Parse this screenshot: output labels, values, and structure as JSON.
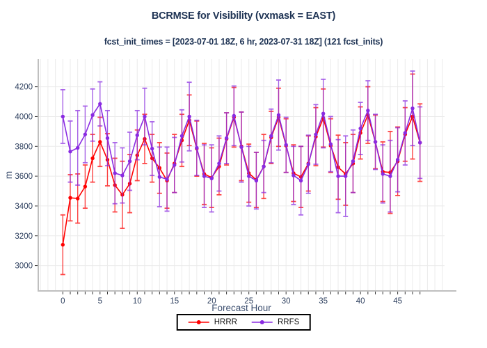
{
  "header": {
    "title": "BCRMSE for Visibility (vxmask = EAST)",
    "subtitle": "fcst_init_times = [2023-07-01 18Z, 6 hr, 2023-07-31 18Z] (121 fcst_inits)"
  },
  "chart_data": {
    "type": "line",
    "title": "BCRMSE for Visibility (vxmask = EAST)",
    "subtitle": "fcst_init_times = [2023-07-01 18Z, 6 hr, 2023-07-31 18Z] (121 fcst_inits)",
    "xlabel": "Forecast Hour",
    "ylabel": "m",
    "x": [
      0,
      1,
      2,
      3,
      4,
      5,
      6,
      7,
      8,
      9,
      10,
      11,
      12,
      13,
      14,
      15,
      16,
      17,
      18,
      19,
      20,
      21,
      22,
      23,
      24,
      25,
      26,
      27,
      28,
      29,
      30,
      31,
      32,
      33,
      34,
      35,
      36,
      37,
      38,
      39,
      40,
      41,
      42,
      43,
      44,
      45,
      46,
      47,
      48
    ],
    "series": [
      {
        "name": "HRRR",
        "color": "#ff0000",
        "marker": "circle",
        "values": [
          3140,
          3455,
          3450,
          3530,
          3720,
          3830,
          3710,
          3540,
          3475,
          3550,
          3740,
          3850,
          3720,
          3655,
          3570,
          3685,
          3840,
          3975,
          3785,
          3615,
          3590,
          3665,
          3850,
          3995,
          3800,
          3620,
          3575,
          3665,
          3860,
          3995,
          3805,
          3620,
          3595,
          3685,
          3865,
          3990,
          3805,
          3660,
          3615,
          3685,
          3890,
          4010,
          3830,
          3630,
          3625,
          3700,
          3880,
          4000,
          3825
        ],
        "err": [
          200,
          155,
          165,
          145,
          160,
          165,
          175,
          180,
          225,
          195,
          170,
          165,
          160,
          170,
          185,
          195,
          175,
          170,
          185,
          205,
          200,
          190,
          175,
          200,
          230,
          195,
          185,
          215,
          175,
          195,
          180,
          190,
          205,
          185,
          195,
          195,
          180,
          215,
          210,
          195,
          175,
          190,
          180,
          200,
          275,
          230,
          180,
          285,
          260
        ]
      },
      {
        "name": "RRFS",
        "color": "#8a2be2",
        "marker": "circle",
        "values": [
          4000,
          3765,
          3790,
          3880,
          4010,
          4085,
          3855,
          3620,
          3605,
          3700,
          3875,
          4000,
          3785,
          3595,
          3580,
          3675,
          3870,
          4000,
          3790,
          3600,
          3585,
          3685,
          3855,
          4005,
          3795,
          3600,
          3570,
          3665,
          3870,
          4010,
          3810,
          3605,
          3570,
          3680,
          3880,
          4020,
          3815,
          3600,
          3600,
          3700,
          3920,
          4040,
          3830,
          3615,
          3600,
          3710,
          3890,
          4055,
          3825
        ],
        "err": [
          180,
          205,
          250,
          190,
          175,
          148,
          185,
          205,
          185,
          195,
          165,
          190,
          180,
          200,
          215,
          185,
          175,
          230,
          185,
          210,
          225,
          185,
          170,
          200,
          235,
          200,
          190,
          175,
          180,
          235,
          185,
          195,
          230,
          195,
          200,
          230,
          185,
          245,
          270,
          210,
          175,
          200,
          185,
          195,
          240,
          215,
          215,
          250,
          240
        ]
      }
    ],
    "xlim": [
      -3.3,
      51.3
    ],
    "ylim": [
      2830,
      4385
    ],
    "xticks_labeled": [
      0,
      5,
      10,
      15,
      20,
      25,
      30,
      35,
      40,
      45
    ],
    "xticks_minor": {
      "start": 0,
      "end": 48,
      "step": 1
    },
    "yticks": [
      3000,
      3200,
      3400,
      3600,
      3800,
      4000,
      4200
    ],
    "grid": true,
    "legend_position": "bottom-center",
    "colors": {
      "title": "#1e3354",
      "tick_label": "#2c3e5d",
      "axis_title": "#3e5070",
      "grid": "#ebebeb",
      "axis_line": "#bfbfbf",
      "tick_mark": "#333333",
      "legend_border": "#000000"
    }
  }
}
